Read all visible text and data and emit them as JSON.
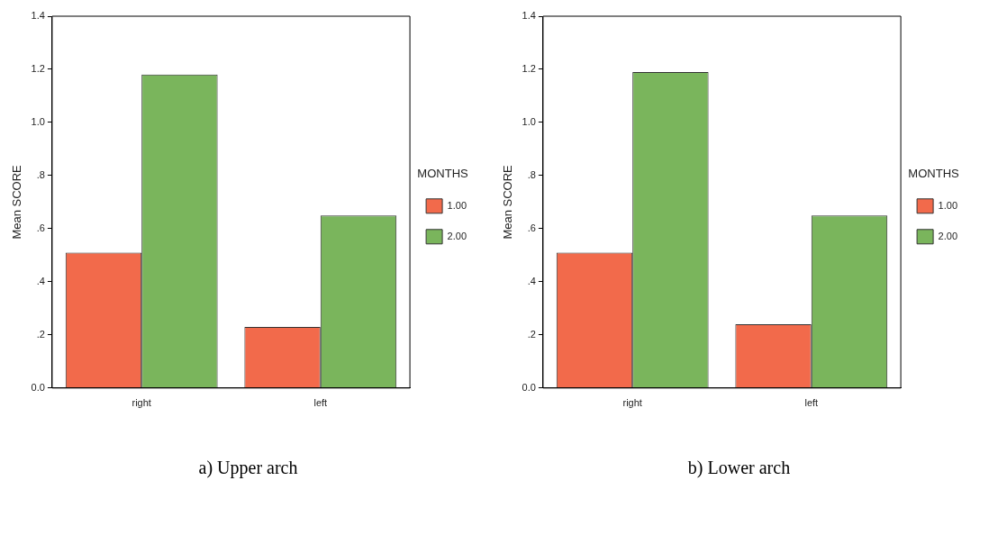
{
  "chart_data": [
    {
      "type": "bar",
      "categories": [
        "right",
        "left"
      ],
      "ylabel": "Mean SCORE",
      "legend_title": "MONTHS",
      "legend": "right",
      "grid": false,
      "ylim": [
        0,
        1.4
      ],
      "yticks": [
        {
          "value": 0,
          "label": "0.0"
        },
        {
          "value": 0.2,
          "label": ".2"
        },
        {
          "value": 0.4,
          "label": ".4"
        },
        {
          "value": 0.6,
          "label": ".6"
        },
        {
          "value": 0.8,
          "label": ".8"
        },
        {
          "value": 1.0,
          "label": "1.0"
        },
        {
          "value": 1.2,
          "label": "1.2"
        },
        {
          "value": 1.4,
          "label": "1.4"
        }
      ],
      "series": [
        {
          "name": "1.00",
          "color": "#f26a4b",
          "values": [
            0.51,
            0.23
          ]
        },
        {
          "name": "2.00",
          "color": "#7ab55c",
          "values": [
            1.18,
            0.65
          ]
        }
      ],
      "annotations": [
        "a) Upper arch"
      ]
    },
    {
      "type": "bar",
      "categories": [
        "right",
        "left"
      ],
      "ylabel": "Mean SCORE",
      "legend_title": "MONTHS",
      "legend": "right",
      "grid": false,
      "ylim": [
        0,
        1.4
      ],
      "yticks": [
        {
          "value": 0,
          "label": "0.0"
        },
        {
          "value": 0.2,
          "label": ".2"
        },
        {
          "value": 0.4,
          "label": ".4"
        },
        {
          "value": 0.6,
          "label": ".6"
        },
        {
          "value": 0.8,
          "label": ".8"
        },
        {
          "value": 1.0,
          "label": "1.0"
        },
        {
          "value": 1.2,
          "label": "1.2"
        },
        {
          "value": 1.4,
          "label": "1.4"
        }
      ],
      "series": [
        {
          "name": "1.00",
          "color": "#f26a4b",
          "values": [
            0.51,
            0.24
          ]
        },
        {
          "name": "2.00",
          "color": "#7ab55c",
          "values": [
            1.19,
            0.65
          ]
        }
      ],
      "annotations": [
        "b) Lower arch"
      ]
    }
  ]
}
